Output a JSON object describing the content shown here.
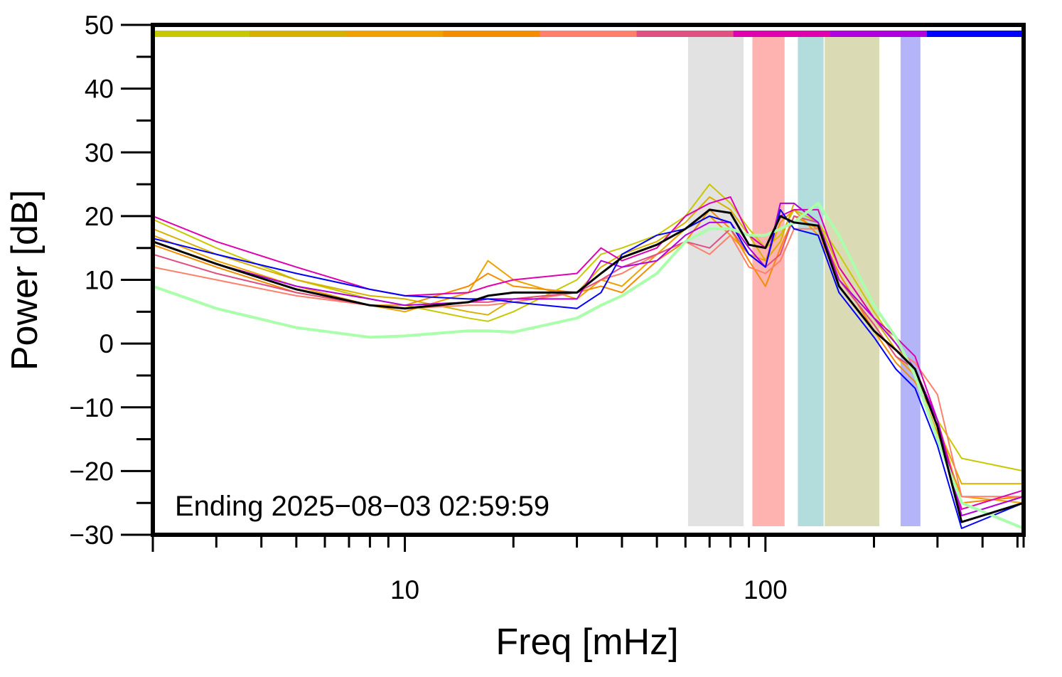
{
  "chart_data": {
    "type": "line",
    "xlabel": "Freq [mHz]",
    "ylabel": "Power [dB]",
    "annotation": "Ending 2025−08−03 02:59:59",
    "xscale": "log",
    "xlim": [
      2,
      520
    ],
    "ylim": [
      -30,
      50
    ],
    "xticks": [
      10,
      100
    ],
    "xminor_ticks": [
      3,
      4,
      5,
      6,
      7,
      8,
      9,
      20,
      30,
      40,
      50,
      60,
      70,
      80,
      90,
      200,
      300,
      400,
      500
    ],
    "yticks": [
      {
        "value": -30,
        "label": "−30"
      },
      {
        "value": -20,
        "label": "−20"
      },
      {
        "value": -10,
        "label": "−10"
      },
      0,
      10,
      20,
      30,
      40,
      50
    ],
    "yminor_ticks": [
      -25,
      -15,
      -5,
      5,
      15,
      25,
      35,
      45
    ],
    "color_bar": true,
    "bands": [
      {
        "xlim": [
          61,
          87
        ],
        "color": "#e2e2e2"
      },
      {
        "xlim": [
          92,
          113
        ],
        "color": "#ffb3b0"
      },
      {
        "xlim": [
          123,
          145
        ],
        "color": "#b3dcdc"
      },
      {
        "xlim": [
          146,
          207
        ],
        "color": "#dadab4"
      },
      {
        "xlim": [
          237,
          269
        ],
        "color": "#b4b4f8"
      }
    ],
    "x": [
      2,
      3,
      5,
      8,
      10,
      15,
      17,
      20,
      30,
      35,
      40,
      50,
      60,
      70,
      80,
      90,
      100,
      110,
      120,
      140,
      160,
      200,
      230,
      260,
      300,
      350,
      520
    ],
    "series": [
      {
        "color": "#c8c800",
        "width": 2,
        "values": [
          19.5,
          15,
          10,
          7,
          6,
          4,
          3.5,
          5,
          10,
          14,
          15,
          17,
          20,
          25,
          22,
          18,
          15,
          17,
          21,
          19,
          14,
          5,
          0,
          -5,
          -12,
          -18,
          -20
        ]
      },
      {
        "color": "#d8b000",
        "width": 2,
        "values": [
          18,
          14,
          10,
          7.5,
          7,
          5,
          4.5,
          7,
          8,
          12,
          14,
          16,
          19,
          23,
          21,
          17,
          13,
          16,
          22,
          19,
          12,
          4,
          -1,
          -4,
          -13,
          -22,
          -22
        ]
      },
      {
        "color": "#f0a000",
        "width": 2,
        "values": [
          17,
          13,
          9,
          6,
          5,
          8,
          13,
          10,
          7,
          10,
          9,
          14,
          18,
          20,
          17,
          14,
          13,
          19,
          21,
          17,
          10,
          3,
          -2,
          -5,
          -14,
          -24,
          -25
        ]
      },
      {
        "color": "#f58c00",
        "width": 2,
        "values": [
          15.5,
          12,
          8,
          6,
          6,
          9,
          11,
          9,
          8,
          9,
          8,
          13,
          16,
          21,
          18,
          13,
          9,
          15,
          20,
          18,
          11,
          2,
          -3,
          -6,
          -12,
          -25,
          -24
        ]
      },
      {
        "color": "#ff7f6a",
        "width": 2,
        "values": [
          12,
          10,
          7.5,
          6,
          5.5,
          6,
          6,
          6.5,
          8,
          10,
          11,
          14,
          16,
          14,
          17,
          12,
          11,
          13,
          18,
          18,
          9,
          2,
          -1,
          -3,
          -8,
          -24,
          -24
        ]
      },
      {
        "color": "#e05080",
        "width": 2,
        "values": [
          14,
          11,
          8,
          6,
          5.5,
          6.5,
          6.5,
          7,
          8,
          10,
          12,
          14,
          16,
          15,
          18,
          14,
          12,
          14,
          20,
          19,
          10,
          3,
          -2,
          -4,
          -12,
          -27,
          -24
        ]
      },
      {
        "color": "#e000b0",
        "width": 2,
        "values": [
          20,
          16,
          12,
          8.5,
          7.5,
          8,
          9,
          10,
          11,
          15,
          13,
          15,
          20,
          22,
          23,
          17,
          15,
          20,
          21,
          21,
          12,
          4,
          1,
          -2,
          -12,
          -26,
          -23
        ]
      },
      {
        "color": "#b000e0",
        "width": 2,
        "values": [
          16,
          12.5,
          9,
          7,
          6,
          6.5,
          7,
          7,
          7,
          13,
          12,
          13,
          17,
          19,
          19,
          15,
          12,
          22,
          22,
          19,
          10,
          4,
          0,
          -4,
          -12,
          -27,
          -24
        ]
      },
      {
        "color": "#0000ff",
        "width": 2,
        "values": [
          16.5,
          14,
          11,
          8.5,
          7.5,
          7,
          7,
          6.5,
          5.5,
          8,
          14,
          17,
          18,
          20,
          19,
          14,
          12,
          21,
          18,
          17,
          8,
          1,
          -4,
          -7,
          -16,
          -29,
          -25
        ]
      },
      {
        "color": "#aaffaa",
        "width": 4,
        "values": [
          9,
          5.5,
          2.5,
          1,
          1.2,
          2,
          2,
          1.8,
          4,
          6,
          7.5,
          11,
          16,
          18,
          18,
          17,
          17,
          18,
          19,
          22,
          17,
          6,
          1,
          -5,
          -15,
          -25,
          -29
        ]
      },
      {
        "color": "#000000",
        "width": 3,
        "values": [
          16,
          12.5,
          8.5,
          6,
          5.5,
          6.5,
          7.5,
          8,
          8,
          11,
          13.5,
          15.5,
          18,
          21,
          20.5,
          15.5,
          15,
          20,
          19,
          18.5,
          9,
          2,
          -1,
          -4,
          -13,
          -28,
          -25
        ]
      }
    ]
  }
}
